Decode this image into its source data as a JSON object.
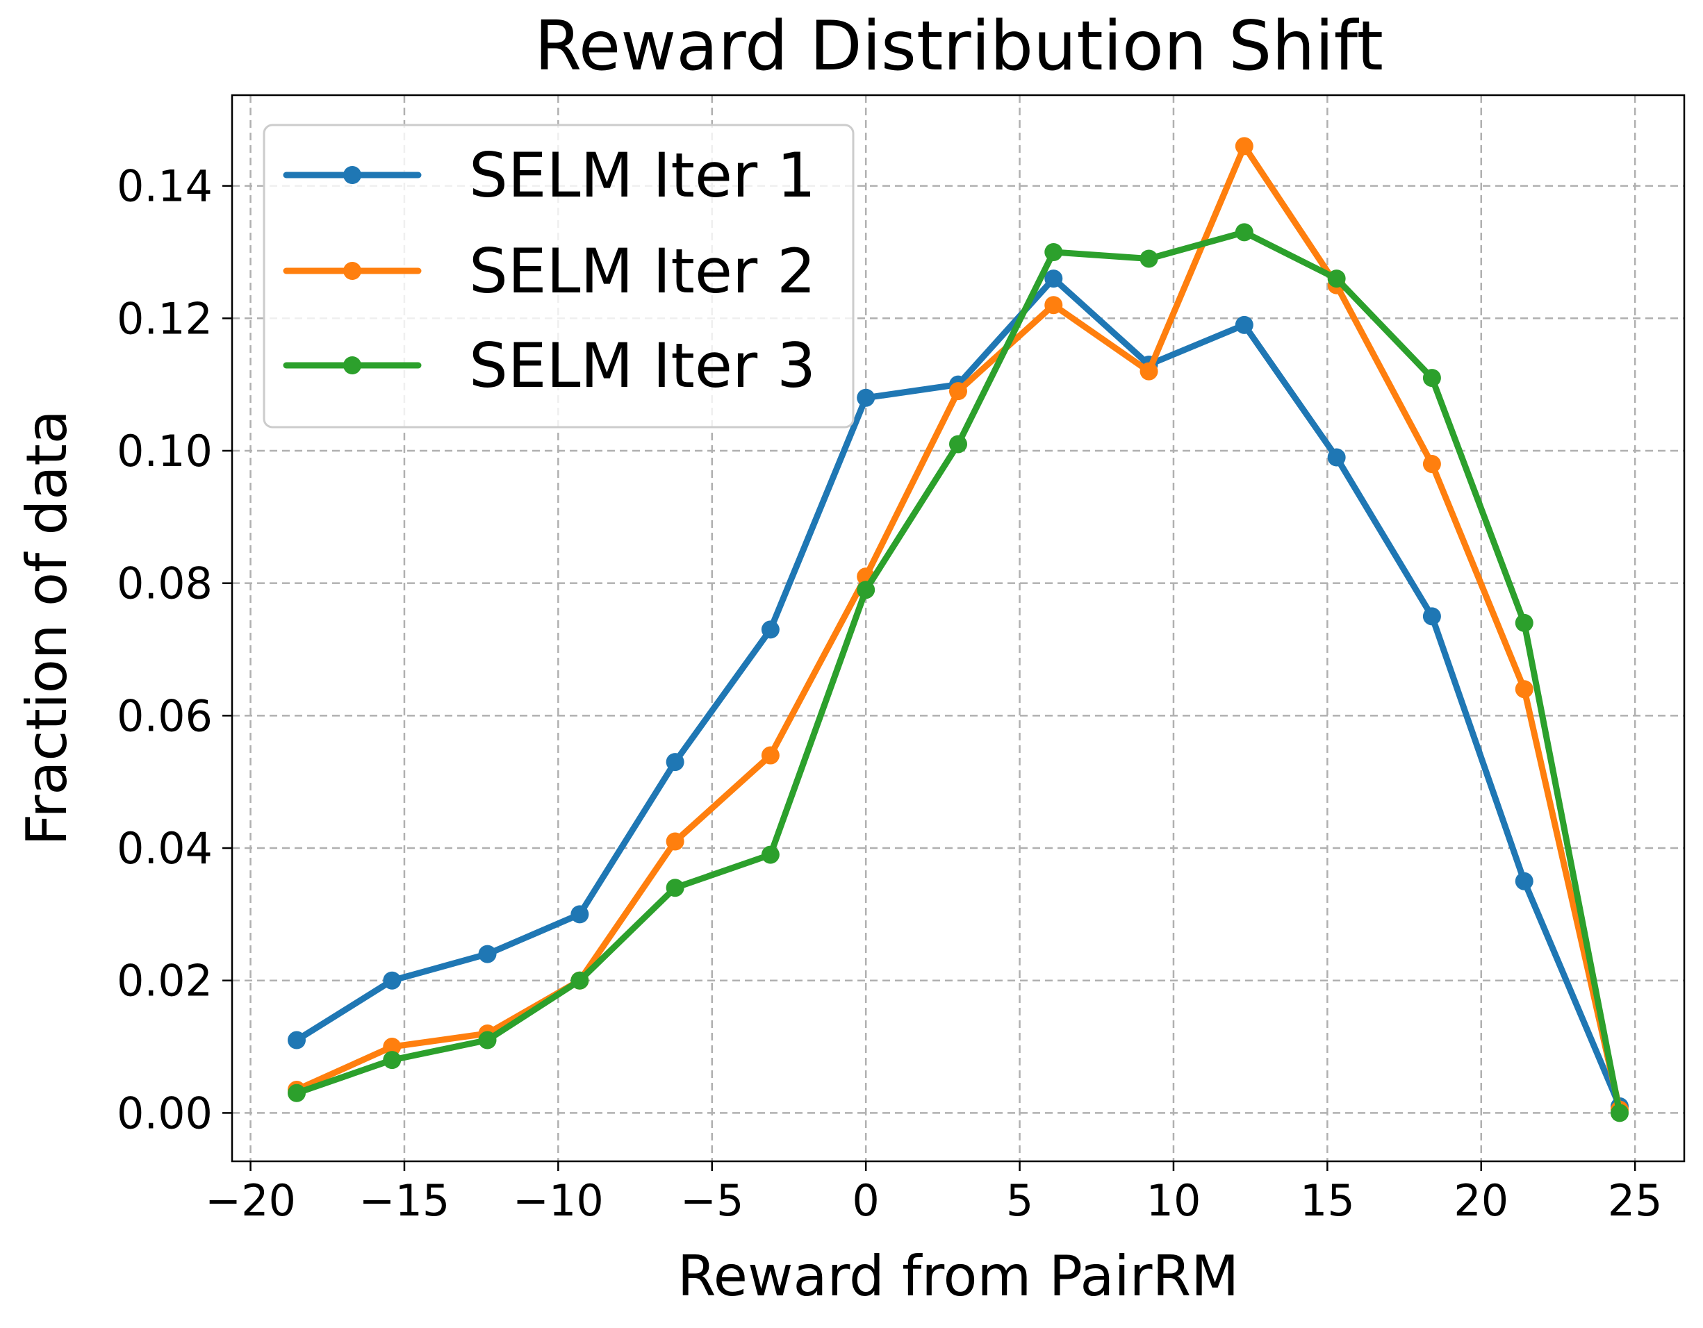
{
  "chart_data": {
    "type": "line",
    "title": "Reward Distribution Shift",
    "xlabel": "Reward from PairRM",
    "ylabel": "Fraction of data",
    "xlim": [
      -20.6,
      26.6
    ],
    "ylim": [
      -0.0073,
      0.1537
    ],
    "xticks": [
      -20,
      -15,
      -10,
      -5,
      0,
      5,
      10,
      15,
      20,
      25
    ],
    "xtick_labels": [
      "−20",
      "−15",
      "−10",
      "−5",
      "0",
      "5",
      "10",
      "15",
      "20",
      "25"
    ],
    "yticks": [
      0.0,
      0.02,
      0.04,
      0.06,
      0.08,
      0.1,
      0.12,
      0.14
    ],
    "ytick_labels": [
      "0.00",
      "0.02",
      "0.04",
      "0.06",
      "0.08",
      "0.10",
      "0.12",
      "0.14"
    ],
    "grid": true,
    "legend_position": "top-left",
    "x": [
      -18.5,
      -15.4,
      -12.3,
      -9.3,
      -6.2,
      -3.1,
      0.0,
      3.0,
      6.1,
      9.2,
      12.3,
      15.3,
      18.4,
      21.4,
      24.5
    ],
    "series": [
      {
        "name": "SELM Iter 1",
        "color": "#1f77b4",
        "values": [
          0.011,
          0.02,
          0.024,
          0.03,
          0.053,
          0.073,
          0.108,
          0.11,
          0.126,
          0.113,
          0.119,
          0.099,
          0.075,
          0.035,
          0.001
        ]
      },
      {
        "name": "SELM Iter 2",
        "color": "#ff7f0e",
        "values": [
          0.0035,
          0.01,
          0.012,
          0.02,
          0.041,
          0.054,
          0.081,
          0.109,
          0.122,
          0.112,
          0.146,
          0.125,
          0.098,
          0.064,
          0.0005
        ]
      },
      {
        "name": "SELM Iter 3",
        "color": "#2ca02c",
        "values": [
          0.003,
          0.008,
          0.011,
          0.02,
          0.034,
          0.039,
          0.079,
          0.101,
          0.13,
          0.129,
          0.133,
          0.126,
          0.111,
          0.074,
          0.0
        ]
      }
    ]
  }
}
